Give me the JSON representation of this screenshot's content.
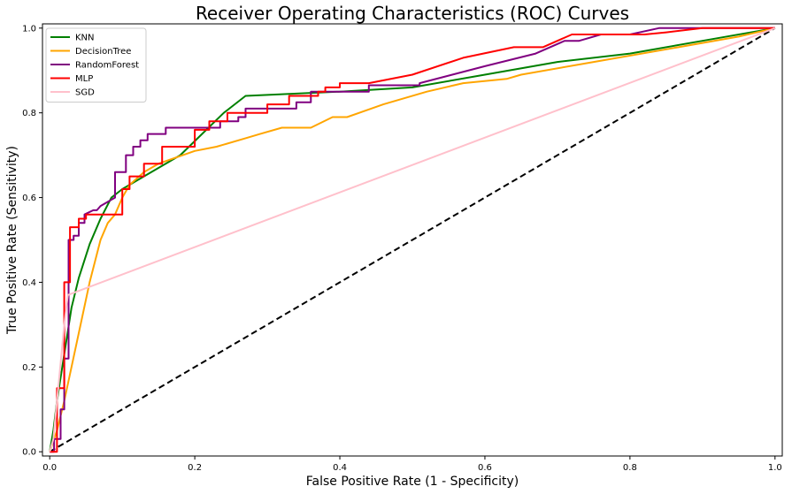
{
  "chart_data": {
    "type": "line",
    "title": "Receiver Operating Characteristics (ROC) Curves",
    "xlabel": "False Positive Rate (1 - Specificity)",
    "ylabel": "True Positive Rate (Sensitivity)",
    "xlim": [
      -0.01,
      1.01
    ],
    "ylim": [
      -0.01,
      1.01
    ],
    "xticks": [
      "0.0",
      "0.2",
      "0.4",
      "0.6",
      "0.8",
      "1.0"
    ],
    "yticks": [
      "0.0",
      "0.2",
      "0.4",
      "0.6",
      "0.8",
      "1.0"
    ],
    "grid": false,
    "legend_position": "top-left",
    "series": [
      {
        "name": "KNN",
        "color": "#008000",
        "x": [
          0,
          0.005,
          0.01,
          0.02,
          0.03,
          0.04,
          0.055,
          0.07,
          0.085,
          0.1,
          0.12,
          0.15,
          0.18,
          0.21,
          0.24,
          0.27,
          0.4,
          0.5,
          0.6,
          0.7,
          0.8,
          0.9,
          1.0
        ],
        "y": [
          0.0,
          0.05,
          0.12,
          0.23,
          0.34,
          0.41,
          0.49,
          0.55,
          0.6,
          0.62,
          0.64,
          0.67,
          0.7,
          0.75,
          0.8,
          0.84,
          0.85,
          0.86,
          0.89,
          0.92,
          0.94,
          0.97,
          1.0
        ]
      },
      {
        "name": "DecisionTree",
        "color": "#FFA500",
        "x": [
          0,
          0.01,
          0.02,
          0.04,
          0.055,
          0.07,
          0.08,
          0.09,
          0.1,
          0.11,
          0.13,
          0.15,
          0.2,
          0.23,
          0.27,
          0.29,
          0.32,
          0.36,
          0.39,
          0.41,
          0.46,
          0.52,
          0.57,
          0.63,
          0.65,
          0.75,
          0.85,
          0.95,
          1.0
        ],
        "y": [
          0.0,
          0.05,
          0.12,
          0.28,
          0.4,
          0.5,
          0.54,
          0.56,
          0.6,
          0.63,
          0.66,
          0.68,
          0.71,
          0.72,
          0.74,
          0.75,
          0.765,
          0.765,
          0.79,
          0.79,
          0.82,
          0.85,
          0.87,
          0.88,
          0.89,
          0.92,
          0.95,
          0.98,
          1.0
        ]
      },
      {
        "name": "RandomForest",
        "color": "#800080",
        "x": [
          0,
          0.006,
          0.006,
          0.015,
          0.015,
          0.02,
          0.02,
          0.026,
          0.026,
          0.033,
          0.033,
          0.04,
          0.04,
          0.048,
          0.048,
          0.06,
          0.065,
          0.07,
          0.08,
          0.09,
          0.09,
          0.105,
          0.105,
          0.115,
          0.115,
          0.125,
          0.125,
          0.135,
          0.135,
          0.16,
          0.16,
          0.2,
          0.2,
          0.235,
          0.235,
          0.26,
          0.26,
          0.27,
          0.27,
          0.34,
          0.34,
          0.36,
          0.36,
          0.44,
          0.44,
          0.51,
          0.51,
          0.6,
          0.67,
          0.71,
          0.73,
          0.76,
          0.8,
          0.84,
          0.9,
          0.96,
          1.0
        ],
        "y": [
          0.0,
          0.0,
          0.03,
          0.03,
          0.1,
          0.1,
          0.22,
          0.22,
          0.5,
          0.5,
          0.51,
          0.51,
          0.54,
          0.54,
          0.56,
          0.57,
          0.57,
          0.58,
          0.59,
          0.6,
          0.66,
          0.66,
          0.7,
          0.7,
          0.72,
          0.72,
          0.735,
          0.735,
          0.75,
          0.75,
          0.765,
          0.765,
          0.765,
          0.765,
          0.78,
          0.78,
          0.79,
          0.79,
          0.81,
          0.81,
          0.825,
          0.825,
          0.85,
          0.85,
          0.865,
          0.865,
          0.87,
          0.91,
          0.94,
          0.97,
          0.97,
          0.985,
          0.985,
          1.0,
          1.0,
          1.0,
          1.0
        ]
      },
      {
        "name": "MLP",
        "color": "#FF0000",
        "x": [
          0,
          0.01,
          0.01,
          0.02,
          0.02,
          0.028,
          0.028,
          0.04,
          0.04,
          0.05,
          0.05,
          0.1,
          0.1,
          0.11,
          0.11,
          0.13,
          0.13,
          0.155,
          0.155,
          0.2,
          0.2,
          0.22,
          0.22,
          0.245,
          0.245,
          0.3,
          0.3,
          0.33,
          0.33,
          0.37,
          0.37,
          0.38,
          0.38,
          0.4,
          0.4,
          0.44,
          0.5,
          0.57,
          0.64,
          0.68,
          0.72,
          0.76,
          0.78,
          0.82,
          0.85,
          0.9,
          1.0
        ],
        "y": [
          0.0,
          0.0,
          0.15,
          0.15,
          0.4,
          0.4,
          0.53,
          0.53,
          0.55,
          0.55,
          0.56,
          0.56,
          0.62,
          0.62,
          0.65,
          0.65,
          0.68,
          0.68,
          0.72,
          0.72,
          0.76,
          0.76,
          0.78,
          0.78,
          0.8,
          0.8,
          0.82,
          0.82,
          0.84,
          0.84,
          0.85,
          0.85,
          0.86,
          0.86,
          0.87,
          0.87,
          0.89,
          0.93,
          0.955,
          0.955,
          0.985,
          0.985,
          0.985,
          0.985,
          0.99,
          1.0,
          1.0
        ]
      },
      {
        "name": "SGD",
        "color": "#FFC0CB",
        "x": [
          0,
          0.005,
          0.01,
          0.02,
          0.025,
          1.0
        ],
        "y": [
          0.0,
          0.03,
          0.12,
          0.3,
          0.37,
          1.0
        ]
      }
    ],
    "reference_line": {
      "x": [
        0,
        1
      ],
      "y": [
        0,
        1
      ],
      "color": "#000000",
      "style": "dashed"
    }
  }
}
